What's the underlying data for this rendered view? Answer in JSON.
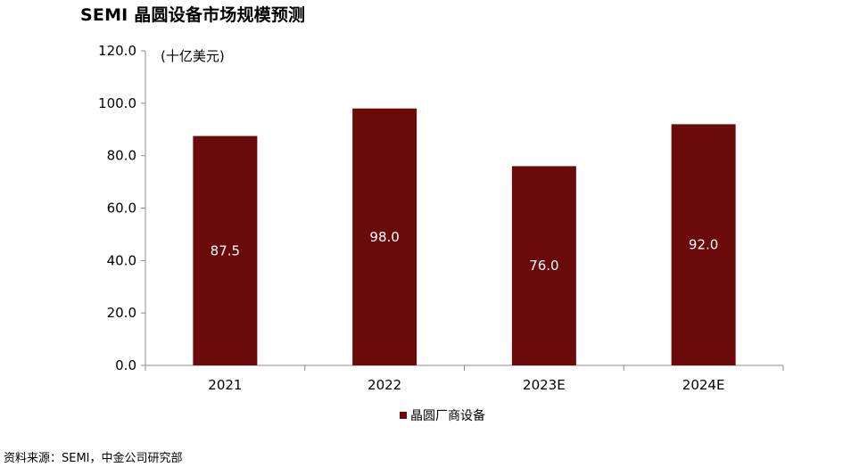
{
  "header": {
    "title": "SEMI 晶圆设备市场规模预测"
  },
  "footer": {
    "source": "资料来源：SEMI，中金公司研究部"
  },
  "chart_data": {
    "type": "bar",
    "title": "SEMI 晶圆设备市场规模预测",
    "unit_label": "(十亿美元)",
    "xlabel": "",
    "ylabel": "",
    "categories": [
      "2021",
      "2022",
      "2023E",
      "2024E"
    ],
    "series": [
      {
        "name": "晶圆厂商设备",
        "values": [
          87.5,
          98.0,
          76.0,
          92.0
        ],
        "value_labels": [
          "87.5",
          "98.0",
          "76.0",
          "92.0"
        ],
        "color": "#6b0a0a"
      }
    ],
    "ylim": [
      0,
      120
    ],
    "yticks": [
      0,
      20,
      40,
      60,
      80,
      100,
      120
    ],
    "ytick_labels": [
      "0.0",
      "20.0",
      "40.0",
      "60.0",
      "80.0",
      "100.0",
      "120.0"
    ],
    "grid": false,
    "legend_position": "bottom-center",
    "data_labels": "inside-center"
  }
}
